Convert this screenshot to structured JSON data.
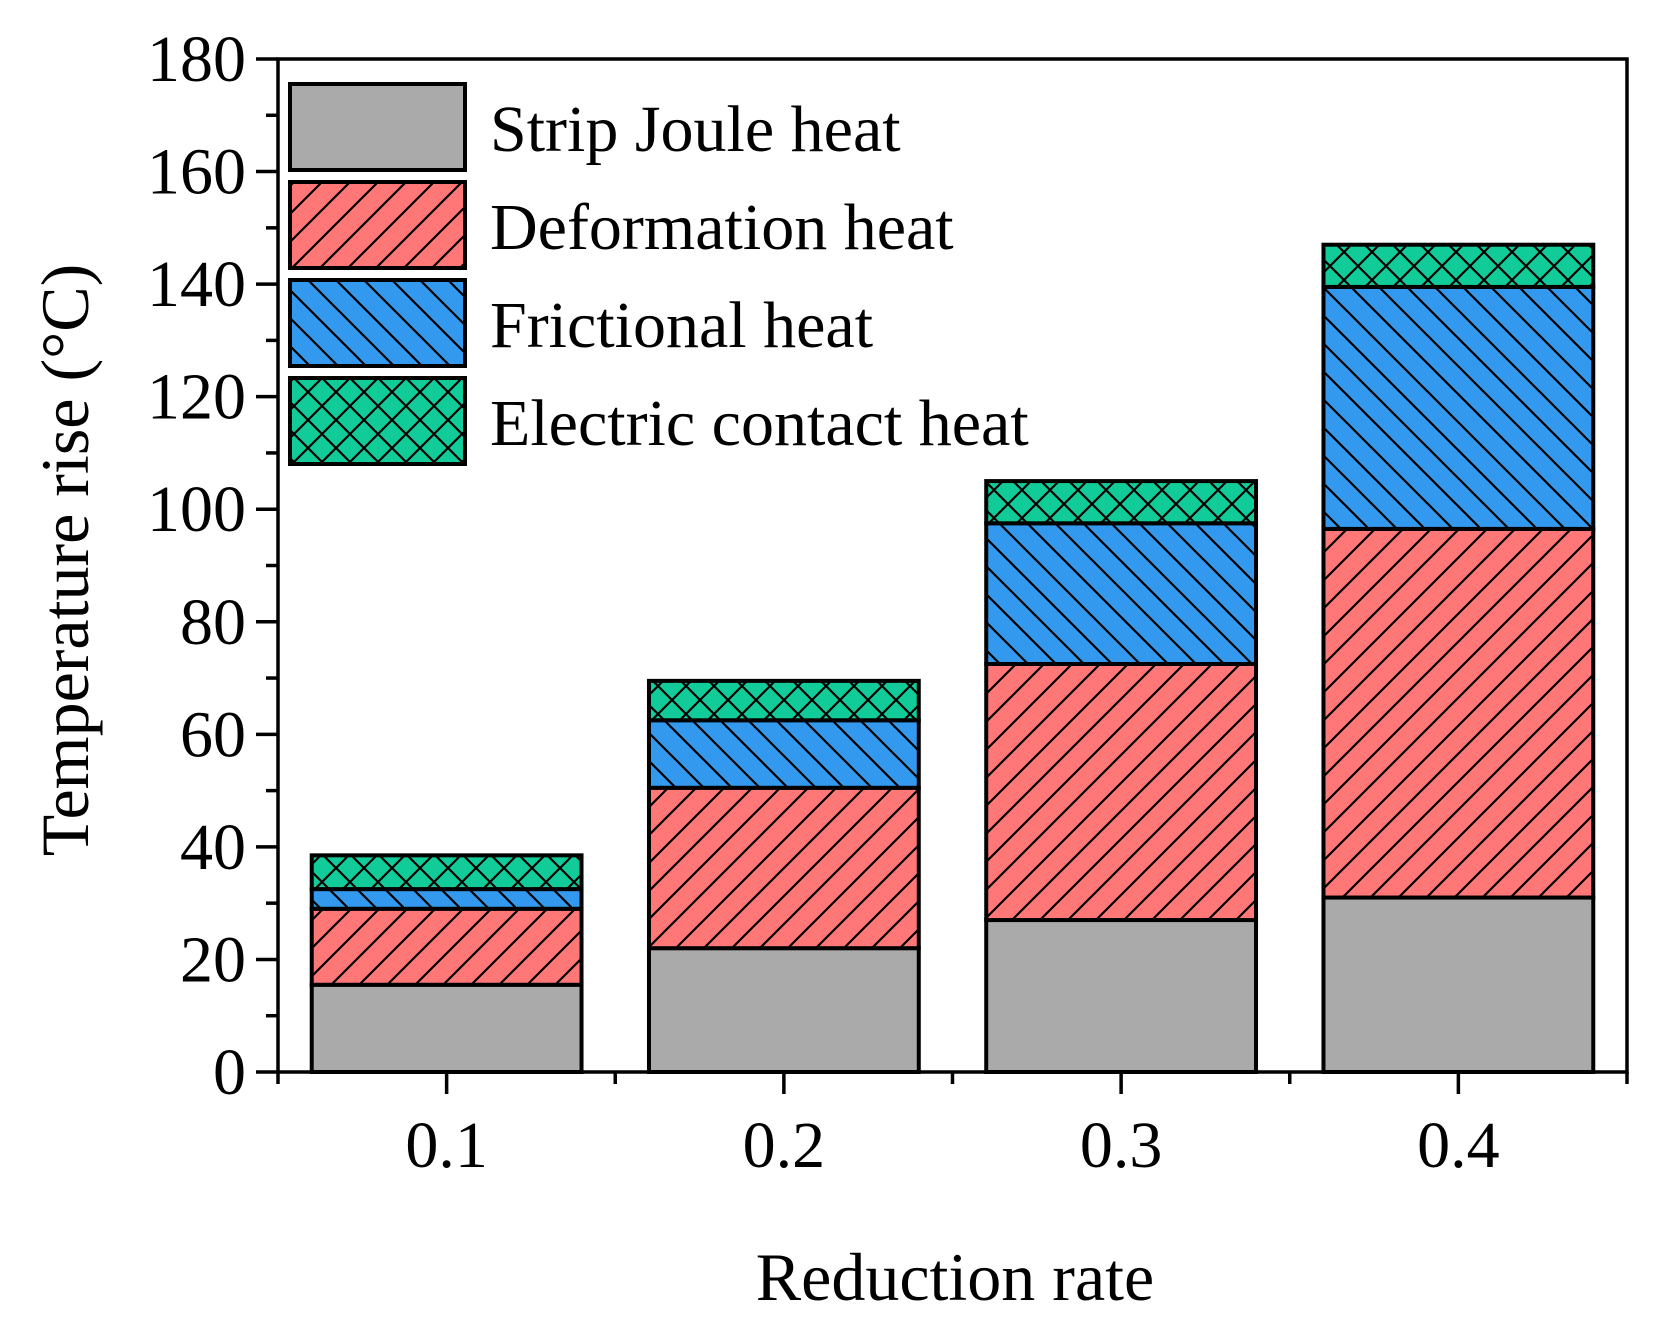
{
  "chart_data": {
    "type": "bar",
    "stacked": true,
    "title": "",
    "xlabel": "Reduction rate",
    "ylabel": "Temperature rise (°C)",
    "categories": [
      "0.1",
      "0.2",
      "0.3",
      "0.4"
    ],
    "ylim": [
      0,
      180
    ],
    "yticks": [
      0,
      20,
      40,
      60,
      80,
      100,
      120,
      140,
      160,
      180
    ],
    "yticks_labels": [
      "0",
      "20",
      "40",
      "60",
      "80",
      "100",
      "120",
      "140",
      "160",
      "180"
    ],
    "grid": false,
    "legend_position": "top-left",
    "series": [
      {
        "name": "Strip Joule heat",
        "values": [
          15.5,
          22,
          27,
          31
        ],
        "color": "#aaaaaa",
        "pattern": "none"
      },
      {
        "name": "Deformation heat",
        "values": [
          13.5,
          28.5,
          45.5,
          65.5
        ],
        "color": "#ff7777",
        "pattern": "diagonal-up"
      },
      {
        "name": "Frictional heat",
        "values": [
          3.5,
          12,
          25,
          43
        ],
        "color": "#3399ee",
        "pattern": "diagonal-down"
      },
      {
        "name": "Electric contact heat",
        "values": [
          6,
          7,
          7.5,
          7.5
        ],
        "color": "#11cc99",
        "pattern": "crosshatch"
      }
    ]
  }
}
